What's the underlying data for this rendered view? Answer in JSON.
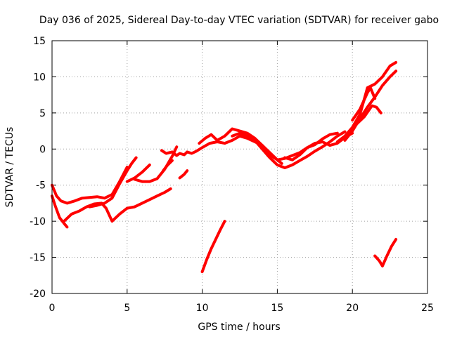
{
  "chart_data": {
    "type": "line",
    "title": "Day 036 of 2025, Sidereal Day-to-day VTEC variation (SDTVAR) for receiver gabo",
    "xlabel": "GPS time / hours",
    "ylabel": "SDTVAR / TECUs",
    "xlim": [
      0,
      25
    ],
    "ylim": [
      -20,
      15
    ],
    "xticks": [
      "0",
      "5",
      "10",
      "15",
      "20",
      "25"
    ],
    "yticks": [
      "-20",
      "-15",
      "-10",
      "-5",
      "0",
      "5",
      "10",
      "15"
    ],
    "grid": true,
    "series_color": "#ff0000",
    "series": [
      {
        "x": [
          0.0,
          0.3,
          0.6,
          1.0,
          1.5,
          2.0,
          2.5,
          3.0,
          3.5,
          4.0,
          4.5,
          5.0
        ],
        "y": [
          -5.0,
          -6.5,
          -7.2,
          -7.5,
          -7.2,
          -6.8,
          -6.7,
          -6.6,
          -6.8,
          -6.3,
          -4.5,
          -2.5
        ]
      },
      {
        "x": [
          0.0,
          0.2,
          0.5,
          0.8,
          1.0
        ],
        "y": [
          -6.5,
          -7.8,
          -9.5,
          -10.3,
          -10.8
        ]
      },
      {
        "x": [
          0.8,
          1.3,
          1.8,
          2.3,
          2.8,
          3.3,
          3.6,
          4.0,
          4.5,
          5.0,
          5.5,
          6.0,
          6.5,
          7.0,
          7.5,
          7.9
        ],
        "y": [
          -10.0,
          -9.0,
          -8.6,
          -8.0,
          -7.6,
          -7.5,
          -8.2,
          -10.0,
          -9.0,
          -8.2,
          -8.0,
          -7.5,
          -7.0,
          -6.5,
          -6.0,
          -5.5
        ]
      },
      {
        "x": [
          2.5,
          3.0,
          3.5,
          4.0,
          4.5,
          5.0,
          5.3,
          5.6
        ],
        "y": [
          -8.0,
          -7.8,
          -7.5,
          -6.8,
          -4.8,
          -3.0,
          -2.0,
          -1.2
        ]
      },
      {
        "x": [
          5.0,
          5.5,
          6.0,
          6.5
        ],
        "y": [
          -4.5,
          -4.0,
          -3.2,
          -2.2
        ]
      },
      {
        "x": [
          5.5,
          6.0,
          6.5,
          7.0,
          7.5,
          8.0,
          8.3
        ],
        "y": [
          -4.2,
          -4.5,
          -4.5,
          -4.1,
          -2.8,
          -1.0,
          0.3
        ]
      },
      {
        "x": [
          7.4,
          7.7,
          8.0
        ],
        "y": [
          -3.0,
          -2.2,
          -1.6
        ]
      },
      {
        "x": [
          8.5,
          8.8,
          9.0
        ],
        "y": [
          -4.0,
          -3.5,
          -3.0
        ]
      },
      {
        "x": [
          7.3,
          7.6,
          8.0,
          8.3,
          8.5,
          8.8,
          9.0,
          9.3,
          9.6,
          10.0,
          10.5,
          11.0,
          11.5,
          12.0,
          12.5,
          13.0,
          13.5,
          14.0,
          14.5,
          15.0,
          15.5,
          16.0,
          16.5,
          17.0,
          17.5,
          18.0,
          18.5,
          19.0,
          19.5,
          20.0
        ],
        "y": [
          -0.2,
          -0.6,
          -0.4,
          -0.9,
          -0.6,
          -0.8,
          -0.4,
          -0.6,
          -0.3,
          0.2,
          0.8,
          1.0,
          0.8,
          1.2,
          1.8,
          1.5,
          1.0,
          0.5,
          -0.8,
          -1.5,
          -1.3,
          -0.9,
          -0.5,
          0.2,
          0.8,
          1.0,
          0.5,
          0.8,
          1.6,
          2.2
        ]
      },
      {
        "x": [
          9.8,
          10.2,
          10.6,
          11.0,
          11.5,
          12.0,
          12.5,
          13.0,
          13.5,
          14.0,
          14.5,
          15.0,
          15.3
        ],
        "y": [
          0.8,
          1.5,
          2.0,
          1.2,
          1.8,
          2.8,
          2.5,
          2.2,
          1.5,
          0.5,
          -0.5,
          -1.5,
          -2.0
        ]
      },
      {
        "x": [
          12.0,
          12.5,
          13.0,
          13.5,
          14.0,
          14.5,
          15.0,
          15.5,
          16.0,
          16.5,
          17.0,
          17.5,
          18.0,
          18.5,
          19.0,
          19.5
        ],
        "y": [
          1.8,
          2.2,
          1.8,
          1.2,
          0.0,
          -1.2,
          -2.2,
          -2.6,
          -2.2,
          -1.6,
          -1.0,
          -0.3,
          0.3,
          1.0,
          1.8,
          2.4
        ]
      },
      {
        "x": [
          15.5,
          16.0,
          16.5,
          17.0,
          17.5,
          18.0,
          18.5,
          19.0
        ],
        "y": [
          -1.2,
          -1.5,
          -0.8,
          0.2,
          0.6,
          1.4,
          2.0,
          2.2
        ]
      },
      {
        "x": [
          19.0,
          19.5,
          20.0,
          20.5,
          20.8,
          21.0,
          21.5,
          22.0,
          22.5,
          22.9
        ],
        "y": [
          1.0,
          1.8,
          3.0,
          4.8,
          7.0,
          8.5,
          9.0,
          10.0,
          11.5,
          12.0
        ]
      },
      {
        "x": [
          19.5,
          20.0,
          20.5,
          21.0,
          21.5,
          22.0,
          22.5,
          22.9
        ],
        "y": [
          1.2,
          2.5,
          4.2,
          5.8,
          7.2,
          8.8,
          10.0,
          10.8
        ]
      },
      {
        "x": [
          20.0,
          20.5,
          21.0,
          21.2,
          21.5
        ],
        "y": [
          4.0,
          5.5,
          7.8,
          8.5,
          7.0
        ]
      },
      {
        "x": [
          20.3,
          20.8,
          21.3,
          21.6,
          21.9
        ],
        "y": [
          3.5,
          4.5,
          6.0,
          5.8,
          5.0
        ]
      },
      {
        "x": [
          10.0,
          10.3,
          10.6,
          10.9,
          11.2,
          11.5
        ],
        "y": [
          -17.0,
          -15.3,
          -13.8,
          -12.5,
          -11.2,
          -10.0
        ]
      },
      {
        "x": [
          21.5,
          21.8,
          22.0,
          22.3,
          22.6,
          22.9
        ],
        "y": [
          -14.8,
          -15.5,
          -16.2,
          -14.8,
          -13.5,
          -12.5
        ]
      }
    ]
  }
}
